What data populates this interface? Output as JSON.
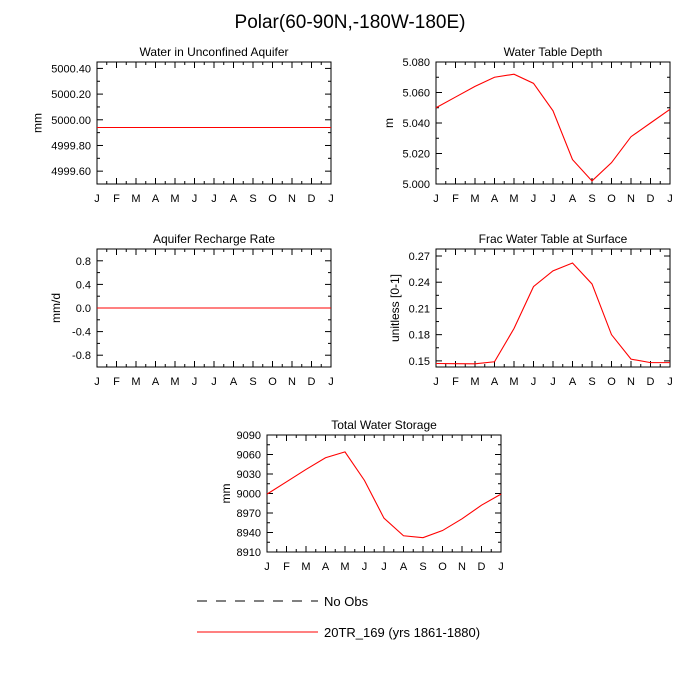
{
  "title": "Polar(60-90N,-180W-180E)",
  "chart_data": [
    {
      "type": "line",
      "title": "Water in Unconfined Aquifer",
      "ylabel": "mm",
      "xticks": [
        "J",
        "F",
        "M",
        "A",
        "M",
        "J",
        "J",
        "A",
        "S",
        "O",
        "N",
        "D",
        "J"
      ],
      "ylim": [
        4999.5,
        5000.45
      ],
      "yticks": [
        4999.6,
        4999.8,
        5000.0,
        5000.2,
        5000.4
      ],
      "ytick_labels": [
        "4999.60",
        "4999.80",
        "5000.00",
        "5000.20",
        "5000.40"
      ],
      "series": [
        {
          "name": "20TR_169 (yrs 1861-1880)",
          "color": "#ff0000",
          "values": [
            4999.94,
            4999.94,
            4999.94,
            4999.94,
            4999.94,
            4999.94,
            4999.94,
            4999.94,
            4999.94,
            4999.94,
            4999.94,
            4999.94,
            4999.94
          ]
        }
      ]
    },
    {
      "type": "line",
      "title": "Water Table Depth",
      "ylabel": "m",
      "xticks": [
        "J",
        "F",
        "M",
        "A",
        "M",
        "J",
        "J",
        "A",
        "S",
        "O",
        "N",
        "D",
        "J"
      ],
      "ylim": [
        5.0,
        5.08
      ],
      "yticks": [
        5.0,
        5.02,
        5.04,
        5.06,
        5.08
      ],
      "ytick_labels": [
        "5.000",
        "5.020",
        "5.040",
        "5.060",
        "5.080"
      ],
      "series": [
        {
          "name": "20TR_169 (yrs 1861-1880)",
          "color": "#ff0000",
          "values": [
            5.05,
            5.057,
            5.064,
            5.07,
            5.072,
            5.066,
            5.048,
            5.016,
            5.002,
            5.014,
            5.031,
            5.04,
            5.049
          ]
        }
      ]
    },
    {
      "type": "line",
      "title": "Aquifer Recharge Rate",
      "ylabel": "mm/d",
      "xticks": [
        "J",
        "F",
        "M",
        "A",
        "M",
        "J",
        "J",
        "A",
        "S",
        "O",
        "N",
        "D",
        "J"
      ],
      "ylim": [
        -1.0,
        1.0
      ],
      "yticks": [
        -0.8,
        -0.4,
        0.0,
        0.4,
        0.8
      ],
      "ytick_labels": [
        "-0.8",
        "-0.4",
        "0.0",
        "0.4",
        "0.8"
      ],
      "series": [
        {
          "name": "20TR_169 (yrs 1861-1880)",
          "color": "#ff0000",
          "values": [
            0,
            0,
            0,
            0,
            0,
            0,
            0,
            0,
            0,
            0,
            0,
            0,
            0
          ]
        }
      ]
    },
    {
      "type": "line",
      "title": "Frac Water Table at Surface",
      "ylabel": "unitless [0-1]",
      "xticks": [
        "J",
        "F",
        "M",
        "A",
        "M",
        "J",
        "J",
        "A",
        "S",
        "O",
        "N",
        "D",
        "J"
      ],
      "ylim": [
        0.143,
        0.278
      ],
      "yticks": [
        0.15,
        0.18,
        0.21,
        0.24,
        0.27
      ],
      "ytick_labels": [
        "0.15",
        "0.18",
        "0.21",
        "0.24",
        "0.27"
      ],
      "series": [
        {
          "name": "20TR_169 (yrs 1861-1880)",
          "color": "#ff0000",
          "values": [
            0.147,
            0.1468,
            0.1466,
            0.149,
            0.187,
            0.235,
            0.253,
            0.262,
            0.238,
            0.18,
            0.152,
            0.148,
            0.148
          ]
        }
      ]
    },
    {
      "type": "line",
      "title": "Total Water Storage",
      "ylabel": "mm",
      "xticks": [
        "J",
        "F",
        "M",
        "A",
        "M",
        "J",
        "J",
        "A",
        "S",
        "O",
        "N",
        "D",
        "J"
      ],
      "ylim": [
        8910,
        9090
      ],
      "yticks": [
        8910,
        8940,
        8970,
        9000,
        9030,
        9060,
        9090
      ],
      "ytick_labels": [
        "8910",
        "8940",
        "8970",
        "9000",
        "9030",
        "9060",
        "9090"
      ],
      "series": [
        {
          "name": "20TR_169 (yrs 1861-1880)",
          "color": "#ff0000",
          "values": [
            8999,
            9018,
            9037,
            9055,
            9064,
            9020,
            8962,
            8935,
            8932,
            8943,
            8961,
            8982,
            8999
          ]
        }
      ]
    }
  ],
  "legend": [
    {
      "label": "No Obs",
      "style": "dashed",
      "color": "#000000"
    },
    {
      "label": "20TR_169 (yrs 1861-1880)",
      "style": "solid",
      "color": "#ff0000"
    }
  ]
}
